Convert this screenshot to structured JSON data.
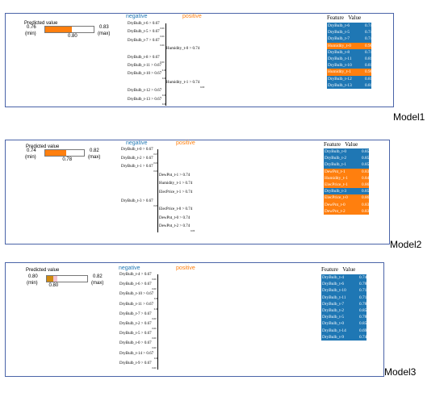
{
  "colors": {
    "neg": "#1f77b4",
    "pos": "#ff7f0e",
    "row_blue": "#1f77b4",
    "row_orange": "#ff7f0e",
    "bar_fill_1": "#ff7f0e",
    "bar_fill_3": "#d08a10",
    "border": "#4a64a8"
  },
  "models": [
    {
      "label": "Model1",
      "predicted": {
        "title": "Predicted value",
        "min": "0.76",
        "min_label": "(min)",
        "max": "0.83",
        "max_label": "(max)",
        "value": "0.80",
        "fraction": 0.55
      },
      "negative": "negative",
      "positive": "positive",
      "conditions": [
        {
          "text": "DryBulb_t-6 > 0.67",
          "zero": "0.00"
        },
        {
          "text": "DryBulb_t-5 > 0.67",
          "zero": "0.00"
        },
        {
          "text": "DryBulb_t-7 > 0.67",
          "zero": "0.00"
        },
        {
          "text": "Humidity_t-0 > 0.74",
          "zero": ""
        },
        {
          "text": "DryBulb_t-8 > 0.67",
          "zero": "0.00"
        },
        {
          "text": "DryBulb_t-11 > 0.67",
          "zero": "0.00"
        },
        {
          "text": "DryBulb_t-10 > 0.67",
          "zero": "0.00"
        },
        {
          "text": "Humidity_t-1 > 0.74",
          "zero": "0.00"
        },
        {
          "text": "DryBulb_t-12 > 0.67",
          "zero": "0.00"
        },
        {
          "text": "DryBulb_t-13 > 0.67",
          "zero": "0.00"
        }
      ],
      "feature_header": "Feature",
      "value_header": "Value",
      "features": [
        {
          "f": "DryBulb_t-6",
          "v": "0.74",
          "c": "blue"
        },
        {
          "f": "DryBulb_t-5",
          "v": "0.74",
          "c": "blue"
        },
        {
          "f": "DryBulb_t-7",
          "v": "0.74",
          "c": "blue"
        },
        {
          "f": "Humidity_t-0",
          "v": "0.90",
          "c": "orange"
        },
        {
          "f": "DryBulb_t-8",
          "v": "0.74",
          "c": "blue"
        },
        {
          "f": "DryBulb_t-11",
          "v": "0.81",
          "c": "blue"
        },
        {
          "f": "DryBulb_t-10",
          "v": "0.81",
          "c": "blue"
        },
        {
          "f": "Humidity_t-1",
          "v": "0.90",
          "c": "orange"
        },
        {
          "f": "DryBulb_t-12",
          "v": "0.81",
          "c": "blue"
        },
        {
          "f": "DryBulb_t-13",
          "v": "0.81",
          "c": "blue"
        }
      ]
    },
    {
      "label": "Model2",
      "predicted": {
        "title": "Predicted value",
        "min": "0.74",
        "min_label": "(min)",
        "max": "0.82",
        "max_label": "(max)",
        "value": "0.78",
        "fraction": 0.55
      },
      "negative": "negative",
      "positive": "positive",
      "conditions": [
        {
          "text": "DryBulb_t-0 > 0.67",
          "zero": "0.03"
        },
        {
          "text": "DryBulb_t-2 > 0.67",
          "zero": "0.00"
        },
        {
          "text": "DryBulb_t-1 > 0.67",
          "zero": "0.00"
        },
        {
          "text": "DewPnt_t-1 > 0.74",
          "zero": ""
        },
        {
          "text": "Humidity_t-1 > 0.74",
          "zero": ""
        },
        {
          "text": "ElecPrice_t-1 > 0.74",
          "zero": ""
        },
        {
          "text": "DryBulb_t-3 > 0.67",
          "zero": "0.00"
        },
        {
          "text": "ElecPrice_t-0 > 0.74",
          "zero": ""
        },
        {
          "text": "DewPnt_t-0 > 0.74",
          "zero": ""
        },
        {
          "text": "DewPnt_t-2 > 0.74",
          "zero": "0.00"
        }
      ],
      "feature_header": "Feature",
      "value_header": "Value",
      "features": [
        {
          "f": "DryBulb_t-0",
          "v": "0.85",
          "c": "blue"
        },
        {
          "f": "DryBulb_t-2",
          "v": "0.85",
          "c": "blue"
        },
        {
          "f": "DryBulb_t-1",
          "v": "0.85",
          "c": "blue"
        },
        {
          "f": "DewPnt_t-1",
          "v": "0.83",
          "c": "orange"
        },
        {
          "f": "Humidity_t-1",
          "v": "0.84",
          "c": "orange"
        },
        {
          "f": "ElecPrice_t-1",
          "v": "0.86",
          "c": "orange"
        },
        {
          "f": "DryBulb_t-3",
          "v": "0.85",
          "c": "blue"
        },
        {
          "f": "ElecPrice_t-0",
          "v": "0.86",
          "c": "orange"
        },
        {
          "f": "DewPnt_t-0",
          "v": "0.83",
          "c": "orange"
        },
        {
          "f": "DewPnt_t-2",
          "v": "0.83",
          "c": "orange"
        }
      ]
    },
    {
      "label": "Model3",
      "predicted": {
        "title": "Predicted value",
        "min": "0.80",
        "min_label": "(min)",
        "max": "0.82",
        "max_label": "(max)",
        "value": "0.80",
        "fraction": 0.15
      },
      "negative": "negative",
      "positive": "positive",
      "conditions": [
        {
          "text": "DryBulb_t-4 > 0.67",
          "zero": "0.00"
        },
        {
          "text": "DryBulb_t-6 > 0.67",
          "zero": "0.00"
        },
        {
          "text": "DryBulb_t-10 > 0.67",
          "zero": "0.00"
        },
        {
          "text": "DryBulb_t-11 > 0.67",
          "zero": "0.00"
        },
        {
          "text": "DryBulb_t-7 > 0.67",
          "zero": "0.00"
        },
        {
          "text": "DryBulb_t-2 > 0.67",
          "zero": "0.00"
        },
        {
          "text": "DryBulb_t-5 > 0.67",
          "zero": "0.00"
        },
        {
          "text": "DryBulb_t-0 > 0.67",
          "zero": "0.00"
        },
        {
          "text": "DryBulb_t-14 > 0.67",
          "zero": "0.00"
        },
        {
          "text": "DryBulb_t-9 > 0.67",
          "zero": "0.00"
        }
      ],
      "feature_header": "Feature",
      "value_header": "Value",
      "features": [
        {
          "f": "DryBulb_t-4",
          "v": "0.74",
          "c": "blue"
        },
        {
          "f": "DryBulb_t-6",
          "v": "0.78",
          "c": "blue"
        },
        {
          "f": "DryBulb_t-10",
          "v": "0.71",
          "c": "blue"
        },
        {
          "f": "DryBulb_t-11",
          "v": "0.71",
          "c": "blue"
        },
        {
          "f": "DryBulb_t-7",
          "v": "0.78",
          "c": "blue"
        },
        {
          "f": "DryBulb_t-2",
          "v": "0.85",
          "c": "blue"
        },
        {
          "f": "DryBulb_t-5",
          "v": "0.78",
          "c": "blue"
        },
        {
          "f": "DryBulb_t-0",
          "v": "0.85",
          "c": "blue"
        },
        {
          "f": "DryBulb_t-14",
          "v": "0.69",
          "c": "blue"
        },
        {
          "f": "DryBulb_t-9",
          "v": "0.74",
          "c": "blue"
        }
      ]
    }
  ]
}
